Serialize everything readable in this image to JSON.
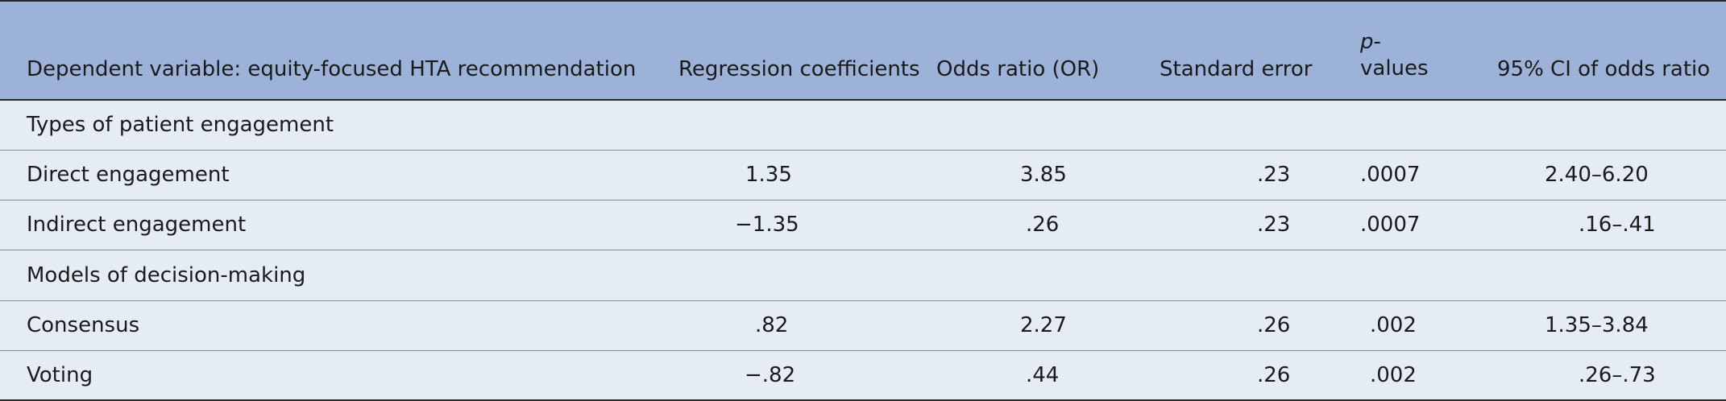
{
  "columns": [
    "Dependent variable: equity-focused HTA recommendation",
    "Regression coefficients",
    "Odds ratio (OR)",
    "Standard error",
    "p-values",
    "95% CI of odds ratio"
  ],
  "header_pvalue": {
    "italic": "p",
    "rest_line1": "-",
    "line2": "values"
  },
  "sections": [
    {
      "title": "Types of patient engagement",
      "rows": [
        {
          "label": "Direct engagement",
          "coef": "1.35",
          "or": "3.85",
          "se": ".23",
          "p": ".0007",
          "ci": "2.40–6.20"
        },
        {
          "label": "Indirect engagement",
          "coef": "−1.35",
          "or": ".26",
          "se": ".23",
          "p": ".0007",
          "ci": ".16–.41"
        }
      ]
    },
    {
      "title": "Models of decision-making",
      "rows": [
        {
          "label": "Consensus",
          "coef": ".82",
          "or": "2.27",
          "se": ".26",
          "p": ".002",
          "ci": "1.35–3.84"
        },
        {
          "label": "Voting",
          "coef": "−.82",
          "or": ".44",
          "se": ".26",
          "p": ".002",
          "ci": ".26–.73"
        }
      ]
    }
  ]
}
